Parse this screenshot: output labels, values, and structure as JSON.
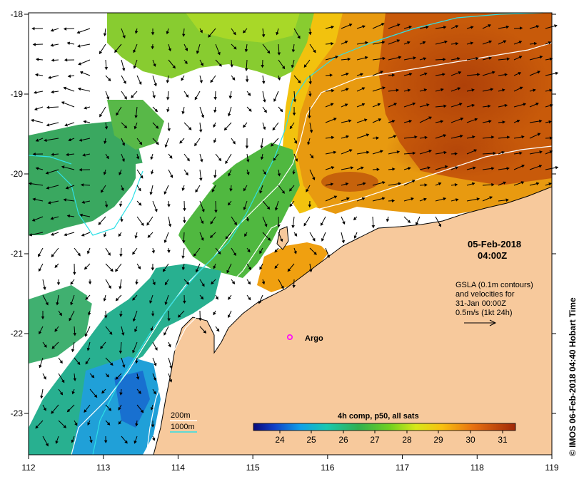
{
  "map": {
    "lon_ticks": [
      "112",
      "113",
      "114",
      "115",
      "116",
      "117",
      "118",
      "119"
    ],
    "lat_ticks": [
      "-18",
      "-19",
      "-20",
      "-21",
      "-22",
      "-23"
    ],
    "date_line1": "05-Feb-2018",
    "date_line2": "04:00Z",
    "gsla_lines": [
      "GSLA (0.1m contours)",
      "and velocities for",
      "31-Jan 00:00Z",
      "0.5m/s (1kt 24h)"
    ],
    "argo_label": "Argo",
    "legend_200m": "200m",
    "legend_1000m": "1000m",
    "colorbar_title": "4h comp, p50, all sats",
    "colorbar_ticks": [
      "24",
      "25",
      "26",
      "27",
      "28",
      "29",
      "30",
      "31"
    ],
    "credit": "© IMOS 06-Feb-2018 04:40 Hobart Time",
    "colors": {
      "land": "#f7c99c",
      "cloud": "#ffffff",
      "contour_200m": "#ffffff",
      "contour_1000m": "#2ee0e6",
      "argo_marker": "#ff00ff"
    }
  }
}
